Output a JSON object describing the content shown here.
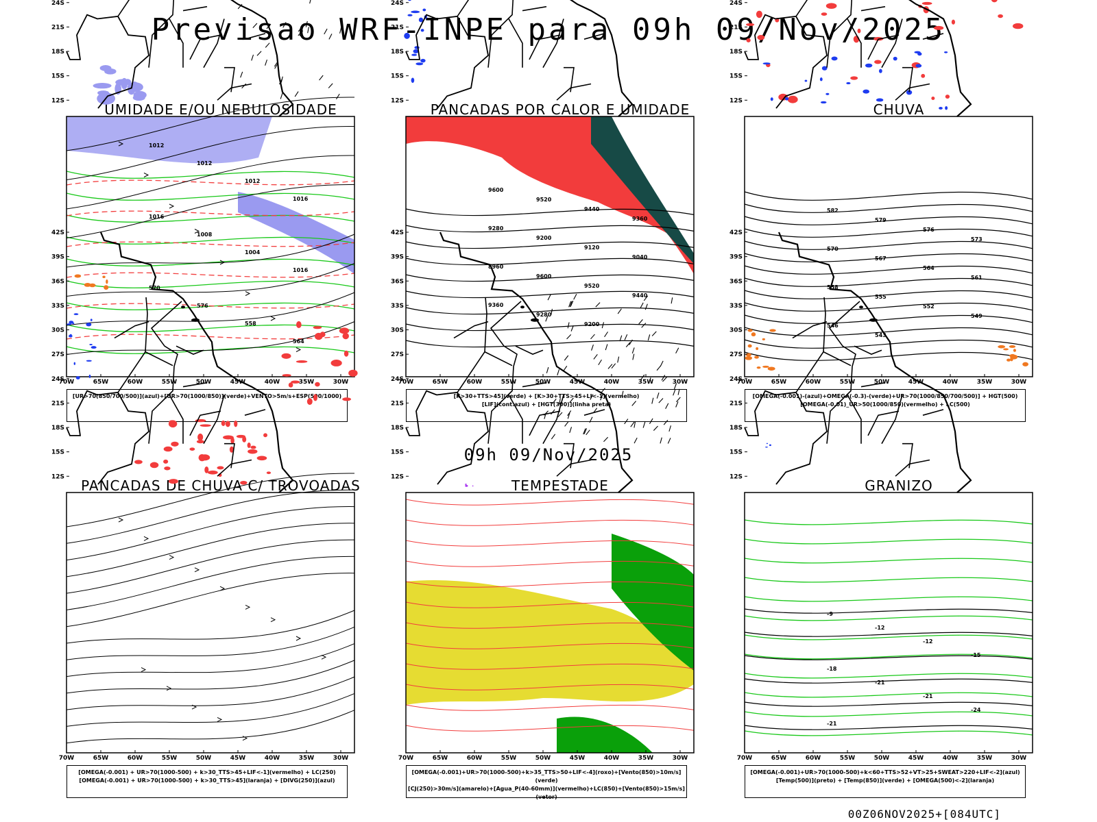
{
  "title": "Previsao WRF-INPE  para 09h 09/Nov/2025",
  "mid_date": "09h 09/Nov/2025",
  "footer": "00Z06NOV2025+[084UTC]",
  "axes": {
    "lat_labels": [
      "12S",
      "15S",
      "18S",
      "21S",
      "24S",
      "27S",
      "30S",
      "33S",
      "36S",
      "39S",
      "42S"
    ],
    "lon_labels": [
      "70W",
      "65W",
      "60W",
      "55W",
      "50W",
      "45W",
      "40W",
      "35W",
      "30W"
    ]
  },
  "panels": [
    {
      "title": "UMIDADE E/OU NEBULOSIDADE",
      "legend": [
        "[UR>70(850/700/500)](azul)+[UR>70(1000/850)](verde)+VENTO>5m/s+ESP(500/1000)"
      ],
      "contour_labels": [
        "1012",
        "1012",
        "1012",
        "1016",
        "1016",
        "1008",
        "1004",
        "1016",
        "570",
        "576",
        "558",
        "564"
      ]
    },
    {
      "title": "PANCADAS POR CALOR E UMIDADE",
      "legend": [
        "[K>30+TTS>45](verde) + [K>30+TTS>45+LI<-1](vermelho)",
        "[LIF](cont.azul) + [HGT(300)](linha preta)"
      ],
      "contour_labels": [
        "9600",
        "9520",
        "9440",
        "9360",
        "9280",
        "9200",
        "9120",
        "9040",
        "8960",
        "9600",
        "9520",
        "9440",
        "9360",
        "9280",
        "9200"
      ]
    },
    {
      "title": "CHUVA",
      "legend": [
        "[OMEGA(-0.001)-(azul)+OMEGA(-0.3)-(verde)+UR>70(1000/850/700/500)] + HGT(500)",
        "[OMEGA(-0.01)_UR>50(1000/850)(vermelho) + LC(500)"
      ],
      "contour_labels": [
        "582",
        "579",
        "576",
        "573",
        "570",
        "567",
        "564",
        "561",
        "558",
        "555",
        "552",
        "549",
        "546",
        "543"
      ]
    },
    {
      "title": "PANCADAS DE CHUVA C/ TROVOADAS",
      "legend": [
        "[OMEGA(-0.001) + UR>70(1000-500) + k>30_TTS>45+LIF<-1](vermelho) + LC(250)",
        "[OMEGA(-0.001) + UR>70(1000-500) + k>30_TTS>45](laranja) + [DIVG(250)](azul)"
      ],
      "contour_labels": []
    },
    {
      "title": "TEMPESTADE",
      "legend": [
        "[OMEGA(-0.001)+UR>70(1000-500)+k>35_TTS>50+LIF<-4](roxo)+[Vento(850)>10m/s](verde)",
        "[CJ(250)>30m/s](amarelo)+[Agua_P(40-60mm)](vermelho)+LC(850)+[Vento(850)>15m/s](vetor)"
      ],
      "contour_labels": []
    },
    {
      "title": "GRANIZO",
      "legend": [
        "[OMEGA(-0.001)+UR>70(1000-500)+k<60+TTS>52+VT>25+SWEAT>220+LIF<-2](azul)",
        "[Temp(500)](preto) + [Temp(850)](verde) + [OMEGA(500)<-2](laranja)"
      ],
      "contour_labels": [
        "-9",
        "-12",
        "-12",
        "-15",
        "-18",
        "-21",
        "-21",
        "-24",
        "-21"
      ]
    }
  ],
  "colors": {
    "red": "#f23c3c",
    "green": "#18c818",
    "blue": "#1e3cf0",
    "lightblue": "#9a9af0",
    "yellow": "#e6dc32",
    "darkgreen": "#174a46",
    "orange": "#f07820",
    "purple": "#a020f0",
    "darkgreen2": "#0aa00a"
  }
}
